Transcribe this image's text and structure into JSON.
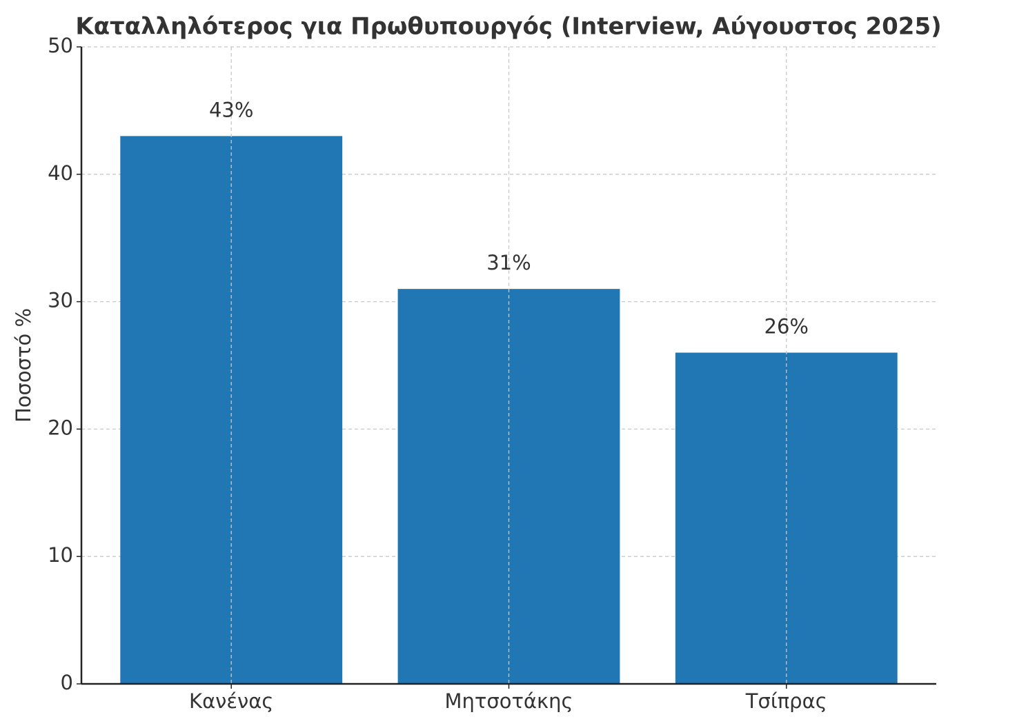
{
  "chart_data": {
    "type": "bar",
    "title": "Καταλληλότερος για Πρωθυπουργός (Interview, Αύγουστος 2025)",
    "y_label": "Ποσοστό %",
    "categories": [
      "Κανένας",
      "Μητσοτάκης",
      "Τσίπρας"
    ],
    "values": [
      43,
      31,
      26
    ],
    "value_labels": [
      "43%",
      "31%",
      "26%"
    ],
    "color": "#2077b4",
    "ylim": [
      0,
      50
    ],
    "yticks": [
      0,
      10,
      20,
      30,
      40,
      50
    ],
    "grid": true
  }
}
